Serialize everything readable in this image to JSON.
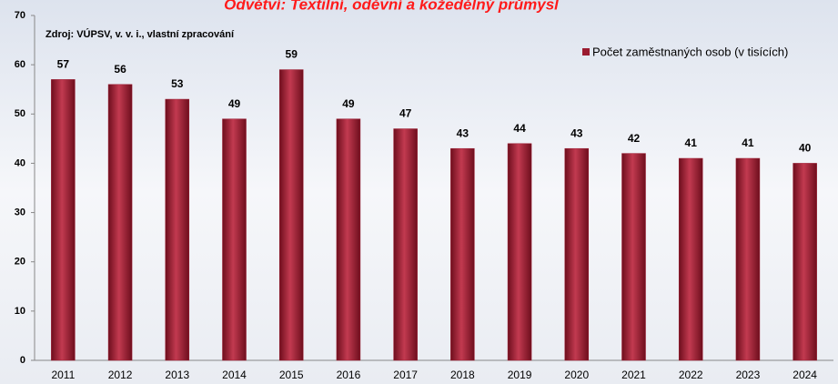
{
  "chart_data": {
    "type": "bar",
    "title": "Odvětví: Textilní, oděvní a kožedělný průmysl",
    "annotation": "Zdroj: VÚPSV, v. v. i., vlastní zpracování",
    "categories": [
      "2011",
      "2012",
      "2013",
      "2014",
      "2015",
      "2016",
      "2017",
      "2018",
      "2019",
      "2020",
      "2021",
      "2022",
      "2023",
      "2024"
    ],
    "series": [
      {
        "name": "Počet zaměstnaných osob (v tisících)",
        "color": "#9b1b30",
        "values": [
          57,
          56,
          53,
          49,
          59,
          49,
          47,
          43,
          44,
          43,
          42,
          41,
          41,
          40
        ]
      }
    ],
    "ylim": [
      0,
      70
    ],
    "yticks": [
      0,
      10,
      20,
      30,
      40,
      50,
      60,
      70
    ],
    "grid": false,
    "legend": "top-right",
    "data_labels": true
  }
}
